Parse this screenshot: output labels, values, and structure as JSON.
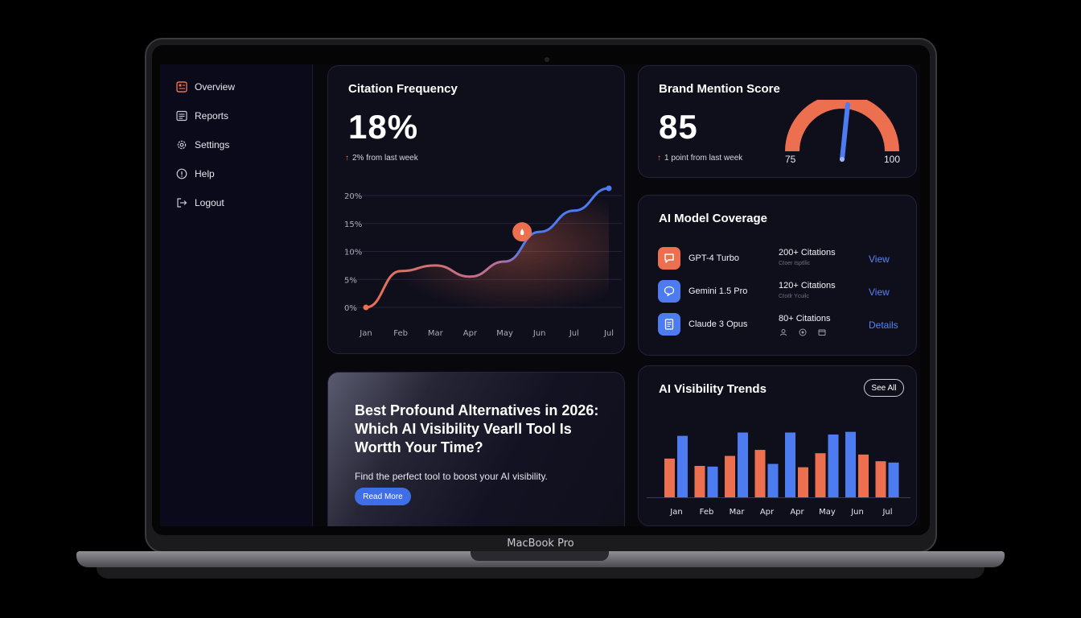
{
  "device": {
    "label": "MacBook Pro"
  },
  "sidebar": {
    "items": [
      {
        "label": "Overview",
        "icon": "dashboard-icon"
      },
      {
        "label": "Reports",
        "icon": "list-icon"
      },
      {
        "label": "Settings",
        "icon": "gear-icon"
      },
      {
        "label": "Help",
        "icon": "info-icon"
      },
      {
        "label": "Logout",
        "icon": "logout-icon"
      }
    ]
  },
  "citation": {
    "title": "Citation Frequency",
    "value": "18%",
    "delta": "2% from last week"
  },
  "brand": {
    "title": "Brand Mention Score",
    "value": "85",
    "delta": "1 point from last week",
    "gauge_min": "75",
    "gauge_max": "100"
  },
  "coverage": {
    "title": "AI Model Coverage",
    "models": [
      {
        "name": "GPT-4 Turbo",
        "citations": "200+ Citations",
        "sub": "Cℓoer ℓsptllic",
        "link": "View",
        "color": "#ec6f4f"
      },
      {
        "name": "Gemini 1.5 Pro",
        "citations": "120+ Citations",
        "sub": "Cℓoℓlr Ycuilc",
        "link": "View",
        "color": "#4d7cf0"
      },
      {
        "name": "Claude 3 Opus",
        "citations": "80+ Citations",
        "sub": "",
        "link": "Details",
        "color": "#4d7cf0"
      }
    ]
  },
  "article": {
    "title": "Best Profound Alternatives in 2026: Which AI Visibility Vearll Tool Is Wortth Your Time?",
    "subtitle": "Find the perfect tool to boost your AI visibility.",
    "button": "Read More"
  },
  "trends": {
    "title": "AI Visibility Trends",
    "button": "See All"
  },
  "colors": {
    "accent_orange": "#ec6f4f",
    "accent_blue": "#4d7cf0",
    "background": "#0f0f1c"
  },
  "chart_data": [
    {
      "type": "line",
      "title": "Citation Frequency",
      "categories": [
        "Jan",
        "Feb",
        "Mar",
        "Apr",
        "May",
        "Jun",
        "Jul",
        "Jul"
      ],
      "x": [
        0,
        1,
        2,
        3,
        4,
        5,
        6,
        7
      ],
      "y_tick_labels": [
        "0%",
        "5%",
        "10%",
        "15%",
        "20%"
      ],
      "ylim": [
        0,
        20
      ],
      "grid": true,
      "series": [
        {
          "values": [
            0,
            6.5,
            7.5,
            5.5,
            8.2,
            13.5,
            17.3,
            21.3
          ]
        }
      ],
      "highlight": {
        "x": 4.5,
        "y": 13.5
      }
    },
    {
      "type": "bar",
      "title": "AI Visibility Trends",
      "categories": [
        "Jan",
        "Feb",
        "Mar",
        "Apr",
        "Apr",
        "May",
        "Jun",
        "Jul"
      ],
      "ylim": [
        0,
        100
      ],
      "grid": false,
      "series": [
        {
          "values": [
            58,
            47,
            62,
            71,
            45,
            66,
            64,
            54
          ]
        },
        {
          "values": [
            92,
            46,
            97,
            50,
            97,
            94,
            98,
            52
          ]
        }
      ],
      "bar_order": [
        [
          0,
          1
        ],
        [
          0,
          1
        ],
        [
          0,
          1
        ],
        [
          0,
          1
        ],
        [
          1,
          0
        ],
        [
          0,
          1
        ],
        [
          1,
          0
        ],
        [
          0,
          1
        ]
      ]
    }
  ]
}
